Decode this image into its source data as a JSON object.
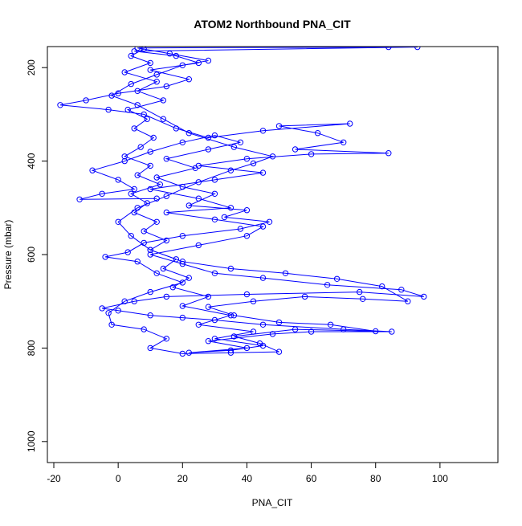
{
  "chart_data": {
    "type": "scatter",
    "title": "ATOM2 Northbound PNA_CIT",
    "xlabel": "PNA_CIT",
    "ylabel": "Pressure (mbar)",
    "xlim": [
      -22,
      118
    ],
    "ylim": [
      1045,
      155
    ],
    "y_reversed": true,
    "grid": false,
    "legend": "none",
    "x_ticks": [
      -20,
      0,
      20,
      40,
      60,
      80,
      100
    ],
    "x_tick_labels": [
      "-20",
      "0",
      "20",
      "40",
      "60",
      "80",
      "100"
    ],
    "y_ticks": [
      200,
      400,
      600,
      800,
      1000
    ],
    "y_tick_labels": [
      "200",
      "400",
      "600",
      "800",
      "1000"
    ],
    "series": [
      {
        "color": "#0000ff",
        "marker": "open-circle",
        "connect": "lines",
        "points": [
          [
            8,
            160
          ],
          [
            4,
            175
          ],
          [
            10,
            190
          ],
          [
            2,
            210
          ],
          [
            12,
            230
          ],
          [
            6,
            250
          ],
          [
            14,
            270
          ],
          [
            3,
            290
          ],
          [
            9,
            310
          ],
          [
            5,
            330
          ],
          [
            11,
            350
          ],
          [
            7,
            370
          ],
          [
            2,
            390
          ],
          [
            10,
            410
          ],
          [
            6,
            430
          ],
          [
            13,
            450
          ],
          [
            4,
            470
          ],
          [
            9,
            490
          ],
          [
            5,
            510
          ],
          [
            12,
            530
          ],
          [
            8,
            550
          ],
          [
            15,
            570
          ],
          [
            10,
            590
          ],
          [
            18,
            610
          ],
          [
            14,
            630
          ],
          [
            22,
            650
          ],
          [
            17,
            670
          ],
          [
            28,
            690
          ],
          [
            20,
            710
          ],
          [
            35,
            730
          ],
          [
            25,
            750
          ],
          [
            42,
            765
          ],
          [
            30,
            780
          ],
          [
            45,
            795
          ],
          [
            35,
            805
          ],
          [
            22,
            810
          ],
          [
            40,
            800
          ],
          [
            28,
            785
          ],
          [
            48,
            770
          ],
          [
            60,
            765
          ],
          [
            85,
            765
          ],
          [
            70,
            760
          ],
          [
            45,
            750
          ],
          [
            30,
            740
          ],
          [
            20,
            735
          ],
          [
            10,
            730
          ],
          [
            0,
            720
          ],
          [
            -5,
            715
          ],
          [
            5,
            700
          ],
          [
            15,
            690
          ],
          [
            40,
            685
          ],
          [
            75,
            680
          ],
          [
            95,
            690
          ],
          [
            88,
            675
          ],
          [
            65,
            665
          ],
          [
            45,
            650
          ],
          [
            30,
            640
          ],
          [
            20,
            620
          ],
          [
            10,
            600
          ],
          [
            25,
            580
          ],
          [
            40,
            560
          ],
          [
            45,
            540
          ],
          [
            30,
            525
          ],
          [
            15,
            510
          ],
          [
            35,
            500
          ],
          [
            25,
            480
          ],
          [
            10,
            460
          ],
          [
            30,
            440
          ],
          [
            45,
            425
          ],
          [
            25,
            410
          ],
          [
            40,
            395
          ],
          [
            60,
            385
          ],
          [
            84,
            383
          ],
          [
            55,
            375
          ],
          [
            70,
            360
          ],
          [
            62,
            340
          ],
          [
            50,
            325
          ],
          [
            72,
            320
          ],
          [
            45,
            335
          ],
          [
            28,
            350
          ],
          [
            18,
            330
          ],
          [
            8,
            300
          ],
          [
            -3,
            290
          ],
          [
            -18,
            280
          ],
          [
            -10,
            270
          ],
          [
            0,
            255
          ],
          [
            15,
            240
          ],
          [
            22,
            225
          ],
          [
            10,
            205
          ],
          [
            25,
            190
          ],
          [
            18,
            175
          ],
          [
            5,
            165
          ],
          [
            93,
            156
          ]
        ]
      },
      {
        "color": "#0000ff",
        "marker": "open-circle",
        "connect": "lines",
        "points": [
          [
            12,
            480
          ],
          [
            -12,
            482
          ],
          [
            -5,
            470
          ],
          [
            5,
            460
          ],
          [
            0,
            440
          ],
          [
            -8,
            420
          ],
          [
            2,
            400
          ],
          [
            10,
            380
          ],
          [
            20,
            360
          ],
          [
            30,
            345
          ],
          [
            38,
            360
          ],
          [
            28,
            375
          ],
          [
            15,
            395
          ],
          [
            24,
            415
          ],
          [
            12,
            435
          ],
          [
            20,
            455
          ],
          [
            30,
            470
          ],
          [
            22,
            495
          ],
          [
            40,
            505
          ],
          [
            33,
            520
          ],
          [
            47,
            530
          ],
          [
            38,
            545
          ],
          [
            20,
            560
          ],
          [
            8,
            575
          ],
          [
            3,
            595
          ],
          [
            -4,
            605
          ],
          [
            6,
            615
          ],
          [
            12,
            640
          ],
          [
            20,
            660
          ],
          [
            10,
            680
          ],
          [
            2,
            700
          ],
          [
            -3,
            725
          ],
          [
            -2,
            750
          ],
          [
            8,
            760
          ],
          [
            15,
            780
          ],
          [
            10,
            800
          ],
          [
            20,
            812
          ],
          [
            35,
            810
          ],
          [
            50,
            808
          ],
          [
            44,
            790
          ],
          [
            36,
            775
          ],
          [
            55,
            760
          ],
          [
            80,
            764
          ],
          [
            66,
            750
          ],
          [
            50,
            745
          ],
          [
            36,
            730
          ],
          [
            28,
            712
          ],
          [
            42,
            700
          ],
          [
            58,
            690
          ],
          [
            76,
            695
          ],
          [
            90,
            700
          ],
          [
            82,
            668
          ],
          [
            68,
            652
          ],
          [
            52,
            640
          ],
          [
            35,
            630
          ],
          [
            20,
            615
          ],
          [
            10,
            590
          ],
          [
            4,
            560
          ],
          [
            0,
            530
          ],
          [
            6,
            500
          ],
          [
            15,
            475
          ],
          [
            25,
            445
          ],
          [
            35,
            420
          ],
          [
            42,
            405
          ],
          [
            48,
            390
          ],
          [
            36,
            370
          ],
          [
            22,
            340
          ],
          [
            14,
            310
          ],
          [
            6,
            280
          ],
          [
            -2,
            260
          ],
          [
            4,
            235
          ],
          [
            12,
            215
          ],
          [
            20,
            195
          ],
          [
            28,
            185
          ],
          [
            16,
            170
          ],
          [
            6,
            158
          ],
          [
            84,
            156
          ]
        ]
      }
    ]
  }
}
